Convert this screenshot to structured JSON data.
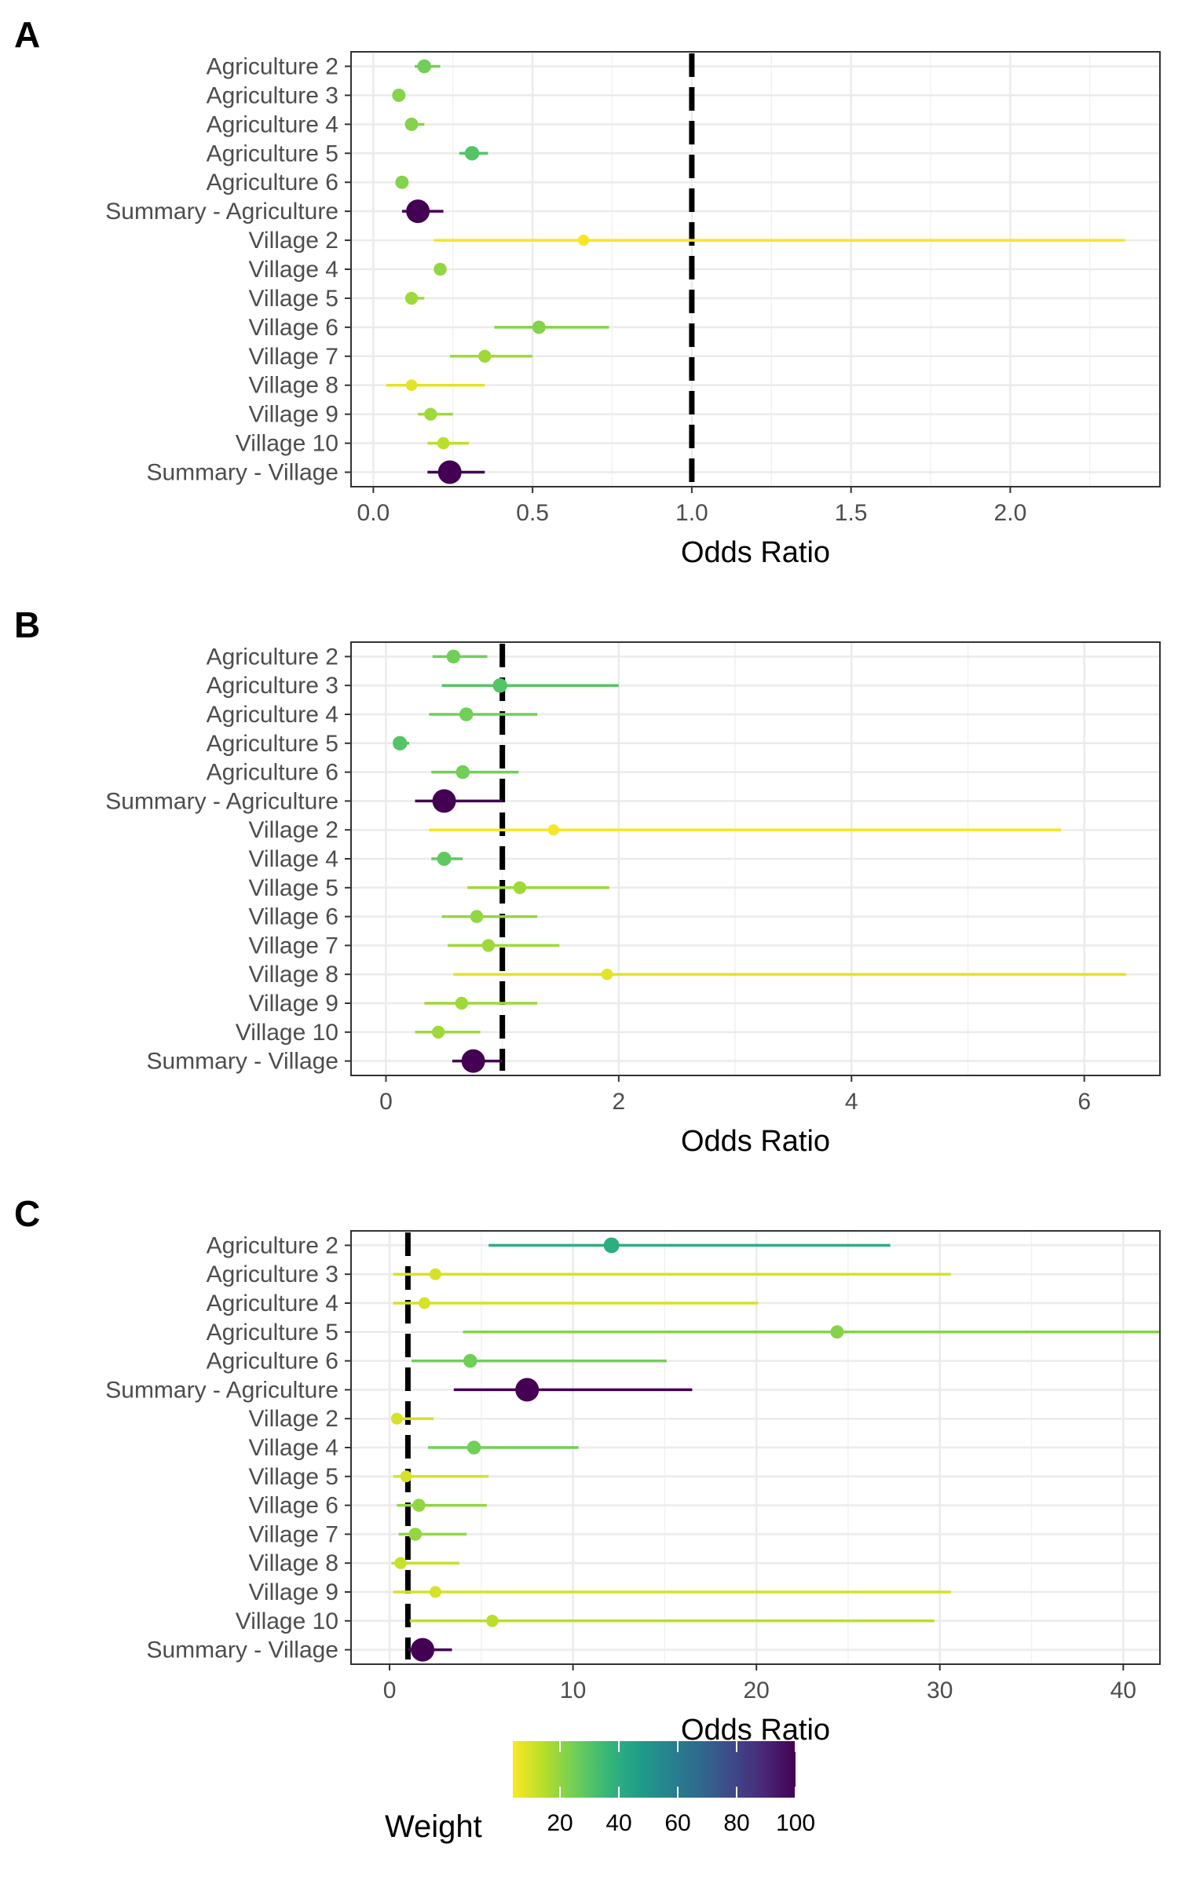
{
  "chart_data": [
    {
      "type": "scatter",
      "panel_label": "A",
      "categories": [
        "Agriculture 2",
        "Agriculture 3",
        "Agriculture 4",
        "Agriculture 5",
        "Agriculture 6",
        "Summary - Agriculture",
        "Village 2",
        "Village 4",
        "Village 5",
        "Village 6",
        "Village 7",
        "Village 8",
        "Village 9",
        "Village 10",
        "Summary - Village"
      ],
      "estimate": [
        0.16,
        0.08,
        0.12,
        0.31,
        0.09,
        0.14,
        0.66,
        0.21,
        0.12,
        0.52,
        0.35,
        0.12,
        0.18,
        0.22,
        0.24
      ],
      "lower": [
        0.13,
        0.07,
        0.1,
        0.27,
        0.08,
        0.09,
        0.19,
        0.21,
        0.1,
        0.38,
        0.24,
        0.04,
        0.14,
        0.17,
        0.17
      ],
      "upper": [
        0.21,
        0.1,
        0.16,
        0.36,
        0.11,
        0.22,
        2.36,
        0.21,
        0.16,
        0.74,
        0.5,
        0.35,
        0.25,
        0.3,
        0.35
      ],
      "weight": [
        25,
        22,
        22,
        30,
        22,
        100,
        5,
        20,
        18,
        22,
        18,
        8,
        18,
        14,
        100
      ],
      "reference_line": 1,
      "xlabel": "Odds Ratio",
      "xlim": [
        -0.07,
        2.47
      ],
      "xticks": [
        0.0,
        0.5,
        1.0,
        1.5,
        2.0
      ],
      "xtick_labels": [
        "0.0",
        "0.5",
        "1.0",
        "1.5",
        "2.0"
      ]
    },
    {
      "type": "scatter",
      "panel_label": "B",
      "categories": [
        "Agriculture 2",
        "Agriculture 3",
        "Agriculture 4",
        "Agriculture 5",
        "Agriculture 6",
        "Summary - Agriculture",
        "Village 2",
        "Village 4",
        "Village 5",
        "Village 6",
        "Village 7",
        "Village 8",
        "Village 9",
        "Village 10",
        "Summary - Village"
      ],
      "estimate": [
        0.58,
        0.98,
        0.69,
        0.12,
        0.66,
        0.5,
        1.44,
        0.5,
        1.15,
        0.78,
        0.88,
        1.9,
        0.65,
        0.45,
        0.75
      ],
      "lower": [
        0.4,
        0.48,
        0.37,
        0.08,
        0.39,
        0.25,
        0.37,
        0.39,
        0.7,
        0.48,
        0.53,
        0.58,
        0.33,
        0.25,
        0.57
      ],
      "upper": [
        0.87,
        2.0,
        1.3,
        0.2,
        1.14,
        1.0,
        5.8,
        0.66,
        1.92,
        1.3,
        1.49,
        6.36,
        1.3,
        0.81,
        1.0
      ],
      "weight": [
        25,
        30,
        25,
        30,
        25,
        100,
        5,
        28,
        18,
        20,
        18,
        8,
        18,
        18,
        100
      ],
      "reference_line": 1,
      "xlabel": "Odds Ratio",
      "xlim": [
        -0.3,
        6.65
      ],
      "xticks": [
        0,
        2,
        4,
        6
      ],
      "xtick_labels": [
        "0",
        "2",
        "4",
        "6"
      ]
    },
    {
      "type": "scatter",
      "panel_label": "C",
      "categories": [
        "Agriculture 2",
        "Agriculture 3",
        "Agriculture 4",
        "Agriculture 5",
        "Agriculture 6",
        "Summary - Agriculture",
        "Village 2",
        "Village 4",
        "Village 5",
        "Village 6",
        "Village 7",
        "Village 8",
        "Village 9",
        "Village 10",
        "Summary - Village"
      ],
      "estimate": [
        12.1,
        2.5,
        1.9,
        24.4,
        4.4,
        7.5,
        0.4,
        4.6,
        0.9,
        1.6,
        1.4,
        0.6,
        2.5,
        5.6,
        1.8
      ],
      "lower": [
        5.4,
        0.2,
        0.2,
        4.0,
        1.2,
        3.5,
        0.1,
        2.1,
        0.2,
        0.4,
        0.5,
        0.1,
        0.2,
        1.1,
        1.0
      ],
      "upper": [
        27.3,
        30.6,
        20.1,
        42.0,
        15.1,
        16.5,
        2.4,
        10.3,
        5.4,
        5.3,
        4.2,
        3.8,
        30.6,
        29.7,
        3.4
      ],
      "weight": [
        40,
        10,
        10,
        22,
        25,
        100,
        10,
        25,
        10,
        20,
        20,
        12,
        10,
        14,
        100
      ],
      "reference_line": 1,
      "xlabel": "Odds Ratio",
      "xlim": [
        -2.1,
        42.0
      ],
      "xticks": [
        0,
        10,
        20,
        30,
        40
      ],
      "xtick_labels": [
        "0",
        "10",
        "20",
        "30",
        "40"
      ]
    }
  ],
  "legend": {
    "title": "Weight",
    "range": [
      4,
      100
    ],
    "ticks": [
      20,
      40,
      60,
      80,
      100
    ],
    "tick_labels": [
      "20",
      "40",
      "60",
      "80",
      "100"
    ],
    "colormap": "viridis (reversed)"
  }
}
